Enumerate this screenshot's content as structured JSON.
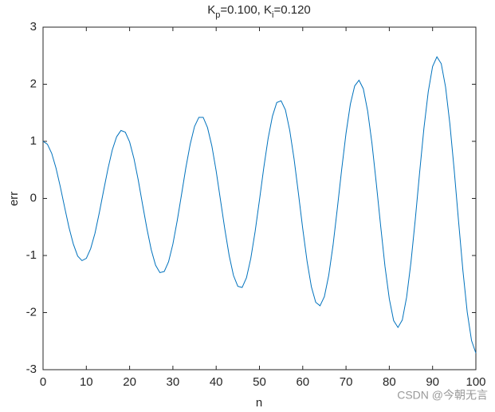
{
  "chart_data": {
    "type": "line",
    "title": "K_p=0.100, K_i=0.120",
    "xlabel": "n",
    "ylabel": "err",
    "watermark": "CSDN @今朝无言",
    "x": [
      0,
      1,
      2,
      3,
      4,
      5,
      6,
      7,
      8,
      9,
      10,
      11,
      12,
      13,
      14,
      15,
      16,
      17,
      18,
      19,
      20,
      21,
      22,
      23,
      24,
      25,
      26,
      27,
      28,
      29,
      30,
      31,
      32,
      33,
      34,
      35,
      36,
      37,
      38,
      39,
      40,
      41,
      42,
      43,
      44,
      45,
      46,
      47,
      48,
      49,
      50,
      51,
      52,
      53,
      54,
      55,
      56,
      57,
      58,
      59,
      60,
      61,
      62,
      63,
      64,
      65,
      66,
      67,
      68,
      69,
      70,
      71,
      72,
      73,
      74,
      75,
      76,
      77,
      78,
      79,
      80,
      81,
      82,
      83,
      84,
      85,
      86,
      87,
      88,
      89,
      90,
      91,
      92,
      93,
      94,
      95,
      96,
      97,
      98,
      99,
      100
    ],
    "series": [
      {
        "name": "err",
        "color": "#0072bd",
        "values": [
          1.0,
          0.95,
          0.79,
          0.53,
          0.2,
          -0.16,
          -0.51,
          -0.8,
          -1.01,
          -1.09,
          -1.05,
          -0.88,
          -0.61,
          -0.25,
          0.14,
          0.52,
          0.85,
          1.08,
          1.19,
          1.16,
          0.99,
          0.7,
          0.32,
          -0.11,
          -0.53,
          -0.9,
          -1.17,
          -1.3,
          -1.28,
          -1.11,
          -0.8,
          -0.39,
          0.07,
          0.54,
          0.95,
          1.26,
          1.42,
          1.42,
          1.24,
          0.92,
          0.48,
          -0.03,
          -0.54,
          -1.0,
          -1.35,
          -1.54,
          -1.56,
          -1.39,
          -1.05,
          -0.58,
          -0.03,
          0.54,
          1.05,
          1.44,
          1.68,
          1.71,
          1.55,
          1.19,
          0.69,
          0.09,
          -0.53,
          -1.1,
          -1.55,
          -1.82,
          -1.88,
          -1.72,
          -1.35,
          -0.82,
          -0.17,
          0.51,
          1.14,
          1.65,
          1.97,
          2.07,
          1.92,
          1.53,
          0.96,
          0.26,
          -0.48,
          -1.19,
          -1.76,
          -2.14,
          -2.26,
          -2.13,
          -1.73,
          -1.12,
          -0.37,
          0.45,
          1.23,
          1.87,
          2.31,
          2.48,
          2.36,
          1.95,
          1.3,
          0.49,
          -0.4,
          -1.26,
          -1.99,
          -2.49,
          -2.71
        ]
      }
    ],
    "xlim": [
      0,
      100
    ],
    "xticks": [
      0,
      10,
      20,
      30,
      40,
      50,
      60,
      70,
      80,
      90,
      100
    ],
    "ylim": [
      -3,
      3
    ],
    "yticks": [
      -3,
      -2,
      -1,
      0,
      1,
      2,
      3
    ],
    "grid": false
  }
}
